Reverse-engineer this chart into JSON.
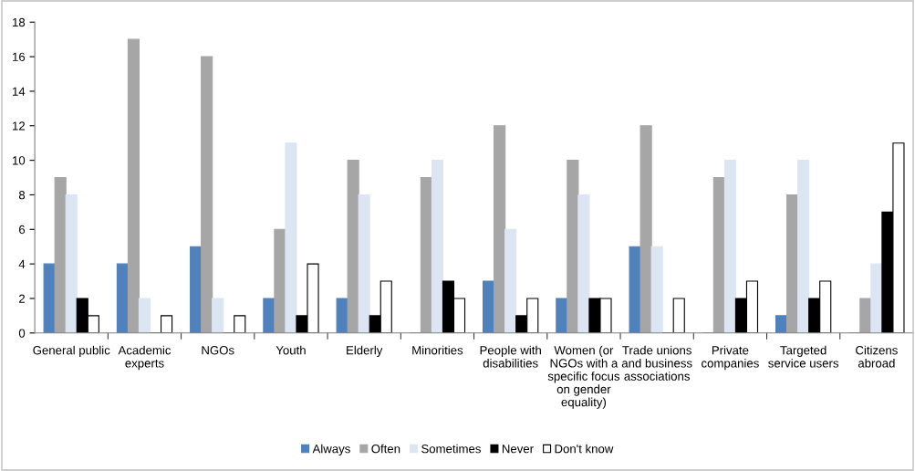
{
  "chart_data": {
    "type": "bar",
    "categories": [
      "General public",
      "Academic\nexperts",
      "NGOs",
      "Youth",
      "Elderly",
      "Minorities",
      "People with\ndisabilities",
      "Women (or\nNGOs with a\nspecific focus\non gender\nequality)",
      "Trade unions\nand business\nassociations",
      "Private\ncompanies",
      "Targeted\nservice users",
      "Citizens\nabroad"
    ],
    "series": [
      {
        "name": "Always",
        "color": "#4f81bd",
        "values": [
          4,
          4,
          5,
          2,
          2,
          0,
          3,
          2,
          5,
          0,
          1,
          0
        ]
      },
      {
        "name": "Often",
        "color": "#a6a6a6",
        "values": [
          9,
          17,
          16,
          6,
          10,
          9,
          12,
          10,
          12,
          9,
          8,
          2
        ]
      },
      {
        "name": "Sometimes",
        "color": "#dce6f2",
        "values": [
          8,
          2,
          2,
          11,
          8,
          10,
          6,
          8,
          5,
          10,
          10,
          4
        ]
      },
      {
        "name": "Never",
        "color": "#000000",
        "values": [
          2,
          0,
          0,
          1,
          1,
          3,
          1,
          2,
          0,
          2,
          2,
          7
        ]
      },
      {
        "name": "Don't know",
        "color": "#ffffff",
        "values": [
          1,
          1,
          1,
          4,
          3,
          2,
          2,
          2,
          2,
          3,
          3,
          11
        ]
      }
    ],
    "ylim": [
      0,
      18
    ],
    "yticks": [
      0,
      2,
      4,
      6,
      8,
      10,
      12,
      14,
      16,
      18
    ],
    "grid": false,
    "legend": "bottom"
  }
}
